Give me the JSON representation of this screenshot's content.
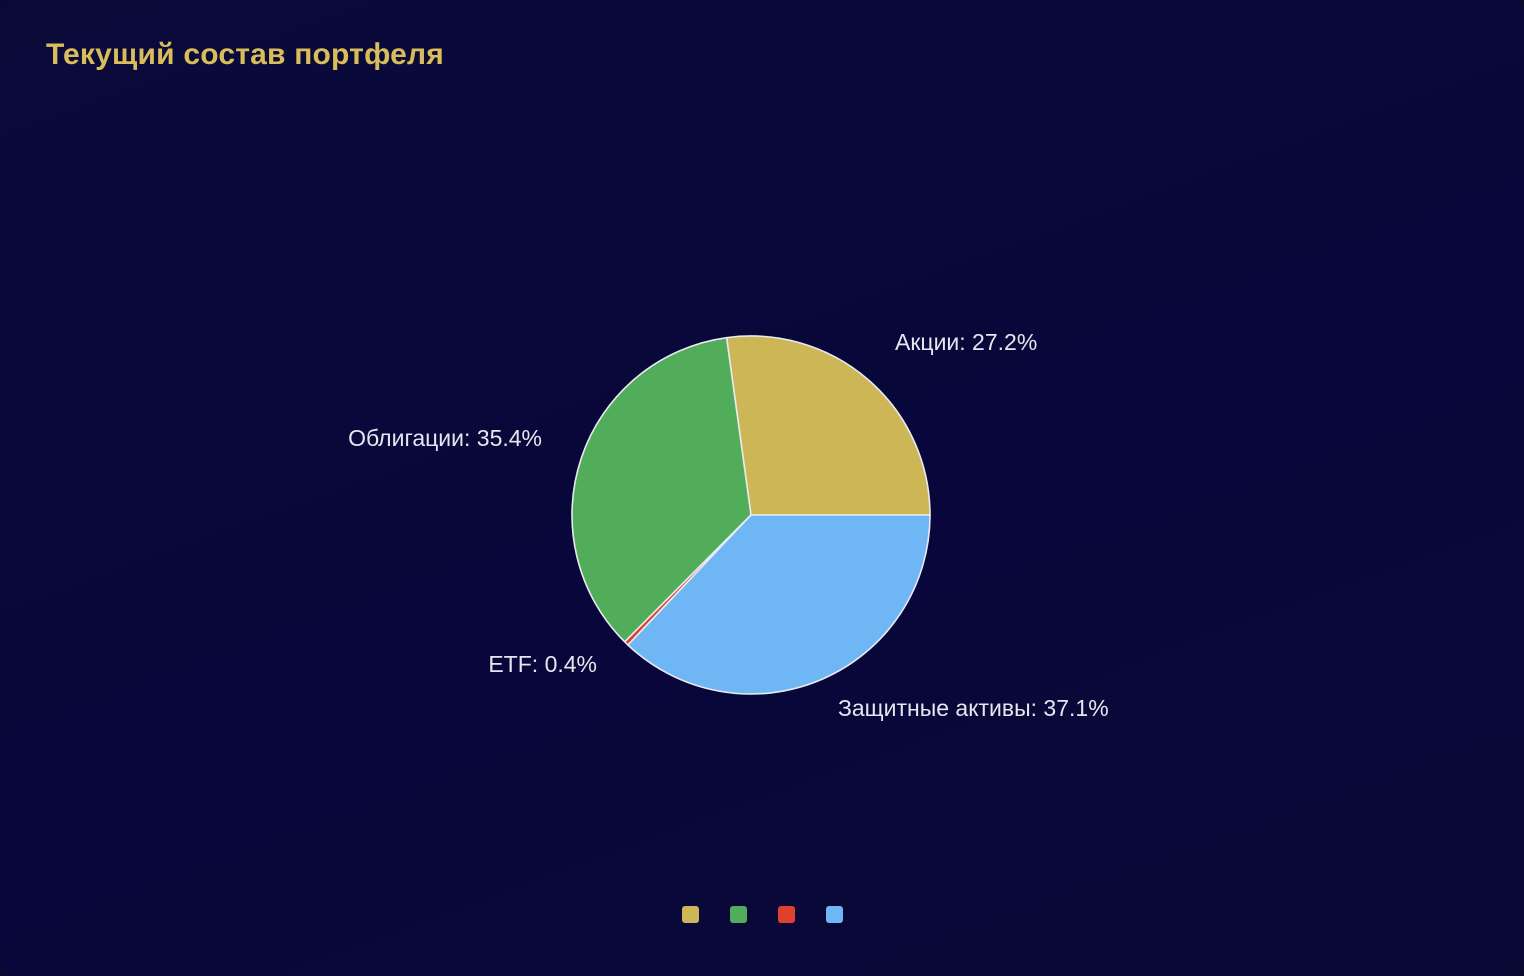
{
  "title": "Текущий состав портфеля",
  "chart_data": {
    "type": "pie",
    "title": "Текущий состав портфеля",
    "slices": [
      {
        "name": "Акции",
        "value": 27.2,
        "label": "Акции: 27.2%",
        "color": "#cdb655"
      },
      {
        "name": "Облигации",
        "value": 35.4,
        "label": "Облигации: 35.4%",
        "color": "#52ad5a"
      },
      {
        "name": "ETF",
        "value": 0.4,
        "label": "ETF: 0.4%",
        "color": "#e0402e"
      },
      {
        "name": "Защитные активы",
        "value": 37.1,
        "label": "Защитные активы: 37.1%",
        "color": "#6fb6f5"
      }
    ],
    "start_angle": "3 o'clock, counter-clockwise",
    "legend": "bottom-center",
    "grid": false
  }
}
